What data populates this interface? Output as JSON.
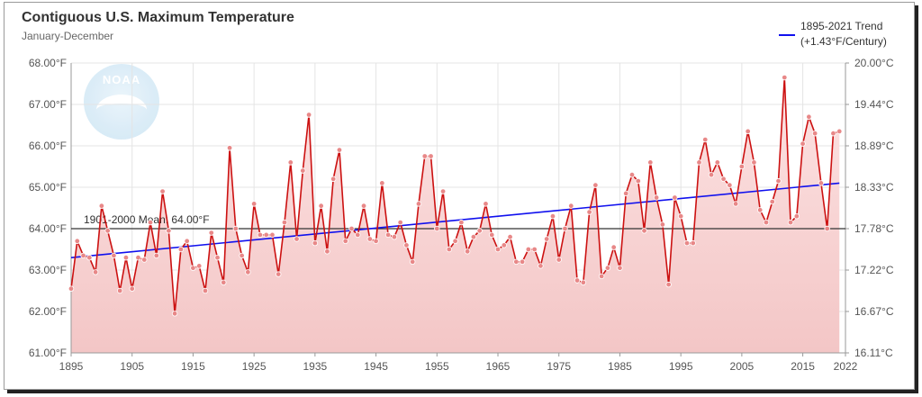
{
  "chart_data": {
    "type": "line",
    "title": "Contiguous U.S. Maximum Temperature",
    "subtitle": "January-December",
    "xlabel": "",
    "ylabel": "",
    "x_range": [
      1895,
      2022
    ],
    "ylim": [
      61,
      68
    ],
    "x_ticks": [
      "1895",
      "1905",
      "1915",
      "1925",
      "1935",
      "1945",
      "1955",
      "1965",
      "1975",
      "1985",
      "1995",
      "2005",
      "2015",
      "2022"
    ],
    "y_ticks_f": [
      "61.00°F",
      "62.00°F",
      "63.00°F",
      "64.00°F",
      "65.00°F",
      "66.00°F",
      "67.00°F",
      "68.00°F"
    ],
    "y_ticks_c": [
      "16.11°C",
      "16.67°C",
      "17.22°C",
      "17.78°C",
      "18.33°C",
      "18.89°C",
      "19.44°C",
      "20.00°C"
    ],
    "grid": true,
    "legend_position": "top-right",
    "colors": {
      "series": "#cc1111",
      "fill": "#f3c6c6",
      "trend": "#1010ee",
      "mean": "#333333",
      "marker": "#e88888"
    },
    "mean_line": {
      "label": "1901-2000 Mean: 64.00°F",
      "value": 64.0
    },
    "trend": {
      "label_line1": "1895-2021 Trend",
      "label_line2": "(+1.43°F/Century)",
      "start": [
        1895,
        63.3
      ],
      "end": [
        2021,
        65.1
      ]
    },
    "series": [
      {
        "x": [
          1895,
          1896,
          1897,
          1898,
          1899,
          1900,
          1901,
          1902,
          1903,
          1904,
          1905,
          1906,
          1907,
          1908,
          1909,
          1910,
          1911,
          1912,
          1913,
          1914,
          1915,
          1916,
          1917,
          1918,
          1919,
          1920,
          1921,
          1922,
          1923,
          1924,
          1925,
          1926,
          1927,
          1928,
          1929,
          1930,
          1931,
          1932,
          1933,
          1934,
          1935,
          1936,
          1937,
          1938,
          1939,
          1940,
          1941,
          1942,
          1943,
          1944,
          1945,
          1946,
          1947,
          1948,
          1949,
          1950,
          1951,
          1952,
          1953,
          1954,
          1955,
          1956,
          1957,
          1958,
          1959,
          1960,
          1961,
          1962,
          1963,
          1964,
          1965,
          1966,
          1967,
          1968,
          1969,
          1970,
          1971,
          1972,
          1973,
          1974,
          1975,
          1976,
          1977,
          1978,
          1979,
          1980,
          1981,
          1982,
          1983,
          1984,
          1985,
          1986,
          1987,
          1988,
          1989,
          1990,
          1991,
          1992,
          1993,
          1994,
          1995,
          1996,
          1997,
          1998,
          1999,
          2000,
          2001,
          2002,
          2003,
          2004,
          2005,
          2006,
          2007,
          2008,
          2009,
          2010,
          2011,
          2012,
          2013,
          2014,
          2015,
          2016,
          2017,
          2018,
          2019,
          2020,
          2021
        ],
        "values": [
          62.55,
          63.7,
          63.35,
          63.3,
          62.95,
          64.55,
          63.95,
          63.35,
          62.5,
          63.3,
          62.55,
          63.3,
          63.25,
          64.15,
          63.35,
          64.9,
          63.95,
          61.95,
          63.5,
          63.7,
          63.05,
          63.1,
          62.5,
          63.9,
          63.3,
          62.7,
          65.95,
          64.0,
          63.35,
          62.95,
          64.6,
          63.85,
          63.85,
          63.85,
          62.9,
          64.15,
          65.6,
          63.75,
          65.4,
          66.75,
          63.65,
          64.55,
          63.45,
          65.2,
          65.9,
          63.7,
          64.0,
          63.85,
          64.55,
          63.75,
          63.7,
          65.1,
          63.85,
          63.8,
          64.15,
          63.6,
          63.2,
          64.6,
          65.75,
          65.75,
          64.0,
          64.9,
          63.5,
          63.7,
          64.15,
          63.45,
          63.8,
          63.95,
          64.6,
          63.85,
          63.5,
          63.6,
          63.8,
          63.2,
          63.2,
          63.5,
          63.5,
          63.1,
          63.75,
          64.3,
          63.25,
          64.0,
          64.55,
          62.75,
          62.7,
          64.4,
          65.05,
          62.85,
          63.05,
          63.55,
          63.05,
          64.85,
          65.3,
          65.15,
          63.95,
          65.6,
          64.75,
          64.1,
          62.65,
          64.75,
          64.3,
          63.65,
          63.65,
          65.6,
          66.15,
          65.3,
          65.6,
          65.2,
          65.05,
          64.6,
          65.5,
          66.35,
          65.6,
          64.45,
          64.15,
          64.65,
          65.15,
          67.65,
          64.15,
          64.3,
          66.05,
          66.7,
          66.3,
          65.1,
          64.0,
          66.3,
          66.35
        ]
      }
    ]
  }
}
